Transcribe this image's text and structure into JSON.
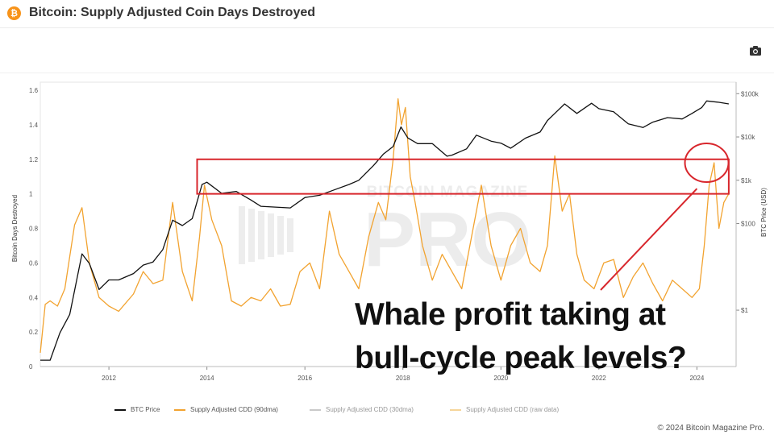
{
  "header": {
    "title": "Bitcoin: Supply Adjusted Coin Days Destroyed",
    "logo_glyph": "₿"
  },
  "toolbar": {
    "camera_icon": "camera-icon"
  },
  "colors": {
    "btc_price": "#111111",
    "cdd_90dma": "#f2a330",
    "cdd_30dma": "#c9c9c9",
    "cdd_raw": "#f6d59a",
    "highlight": "#d8262c"
  },
  "annotation": {
    "line1": "Whale profit taking at",
    "line2": "bull-cycle peak levels?"
  },
  "watermark": {
    "top": "BITCOIN MAGAZINE",
    "main": "PRO"
  },
  "footer": {
    "copyright": "© 2024 Bitcoin Magazine Pro."
  },
  "legend": [
    {
      "label": "BTC Price"
    },
    {
      "label": "Supply Adjusted CDD (90dma)"
    },
    {
      "label": "Supply Adjusted CDD (30dma)"
    },
    {
      "label": "Supply Adjusted CDD (raw data)"
    }
  ],
  "chart_data": {
    "type": "line",
    "title": "Bitcoin: Supply Adjusted Coin Days Destroyed",
    "ylabel": "Bitcoin Days Destroyed",
    "y2label": "BTC Price (USD)",
    "ylim": [
      0,
      1.6
    ],
    "y_ticks": [
      "0",
      "0.2",
      "0.4",
      "0.6",
      "0.8",
      "1",
      "1.2",
      "1.4",
      "1.6"
    ],
    "x_ticks": [
      "2012",
      "2014",
      "2016",
      "2018",
      "2020",
      "2022",
      "2024"
    ],
    "y2_scale": "log",
    "y2_ticks": [
      "$1",
      "$100",
      "$1k",
      "$10k",
      "$100k"
    ],
    "legend_position": "bottom",
    "series": [
      {
        "name": "BTC Price",
        "axis": "right",
        "x": [
          2010.6,
          2010.8,
          2011.0,
          2011.2,
          2011.45,
          2011.6,
          2011.8,
          2012.0,
          2012.2,
          2012.5,
          2012.7,
          2012.9,
          2013.1,
          2013.3,
          2013.5,
          2013.7,
          2013.9,
          2014.0,
          2014.3,
          2014.6,
          2014.9,
          2015.1,
          2015.4,
          2015.7,
          2016.0,
          2016.3,
          2016.6,
          2016.9,
          2017.1,
          2017.4,
          2017.6,
          2017.8,
          2017.96,
          2018.1,
          2018.3,
          2018.6,
          2018.9,
          2019.0,
          2019.3,
          2019.5,
          2019.8,
          2020.0,
          2020.2,
          2020.5,
          2020.8,
          2020.95,
          2021.1,
          2021.3,
          2021.55,
          2021.85,
          2022.0,
          2022.3,
          2022.6,
          2022.9,
          2023.1,
          2023.4,
          2023.7,
          2023.9,
          2024.1,
          2024.2,
          2024.45,
          2024.65
        ],
        "values": [
          0.07,
          0.07,
          0.3,
          0.8,
          20,
          12,
          3,
          5,
          5,
          7,
          11,
          13,
          25,
          120,
          90,
          130,
          800,
          900,
          500,
          550,
          350,
          250,
          240,
          230,
          400,
          450,
          600,
          800,
          1000,
          2200,
          4000,
          6000,
          17000,
          9500,
          7000,
          7000,
          3600,
          3800,
          5300,
          11000,
          8000,
          7200,
          5500,
          9400,
          13000,
          24000,
          35000,
          58000,
          35000,
          60000,
          45000,
          38000,
          20000,
          16500,
          22000,
          28000,
          26000,
          35000,
          48000,
          68000,
          63000,
          58000
        ]
      },
      {
        "name": "Supply Adjusted CDD (90dma)",
        "axis": "left",
        "x": [
          2010.6,
          2010.7,
          2010.8,
          2010.95,
          2011.1,
          2011.3,
          2011.45,
          2011.6,
          2011.8,
          2012.0,
          2012.2,
          2012.5,
          2012.7,
          2012.9,
          2013.1,
          2013.3,
          2013.5,
          2013.7,
          2013.85,
          2013.95,
          2014.1,
          2014.3,
          2014.5,
          2014.7,
          2014.9,
          2015.1,
          2015.3,
          2015.5,
          2015.7,
          2015.9,
          2016.1,
          2016.3,
          2016.5,
          2016.7,
          2016.9,
          2017.1,
          2017.3,
          2017.5,
          2017.65,
          2017.8,
          2017.9,
          2017.97,
          2018.05,
          2018.15,
          2018.25,
          2018.4,
          2018.6,
          2018.8,
          2019.0,
          2019.2,
          2019.4,
          2019.6,
          2019.8,
          2020.0,
          2020.2,
          2020.4,
          2020.6,
          2020.8,
          2020.95,
          2021.1,
          2021.25,
          2021.4,
          2021.55,
          2021.7,
          2021.9,
          2022.1,
          2022.3,
          2022.5,
          2022.7,
          2022.9,
          2023.1,
          2023.3,
          2023.5,
          2023.7,
          2023.9,
          2024.05,
          2024.15,
          2024.25,
          2024.35,
          2024.45,
          2024.55,
          2024.65
        ],
        "values": [
          0.08,
          0.36,
          0.38,
          0.35,
          0.45,
          0.82,
          0.92,
          0.6,
          0.4,
          0.35,
          0.32,
          0.42,
          0.55,
          0.48,
          0.5,
          0.95,
          0.55,
          0.38,
          0.75,
          1.05,
          0.85,
          0.7,
          0.38,
          0.35,
          0.4,
          0.38,
          0.45,
          0.35,
          0.36,
          0.55,
          0.6,
          0.45,
          0.9,
          0.65,
          0.55,
          0.45,
          0.75,
          0.95,
          0.85,
          1.2,
          1.55,
          1.4,
          1.5,
          1.1,
          0.95,
          0.7,
          0.5,
          0.65,
          0.55,
          0.45,
          0.75,
          1.05,
          0.7,
          0.5,
          0.7,
          0.8,
          0.6,
          0.55,
          0.7,
          1.22,
          0.9,
          1.0,
          0.65,
          0.5,
          0.45,
          0.6,
          0.62,
          0.4,
          0.52,
          0.6,
          0.48,
          0.38,
          0.5,
          0.45,
          0.4,
          0.45,
          0.7,
          1.05,
          1.18,
          0.8,
          0.95,
          1.0
        ]
      }
    ]
  }
}
